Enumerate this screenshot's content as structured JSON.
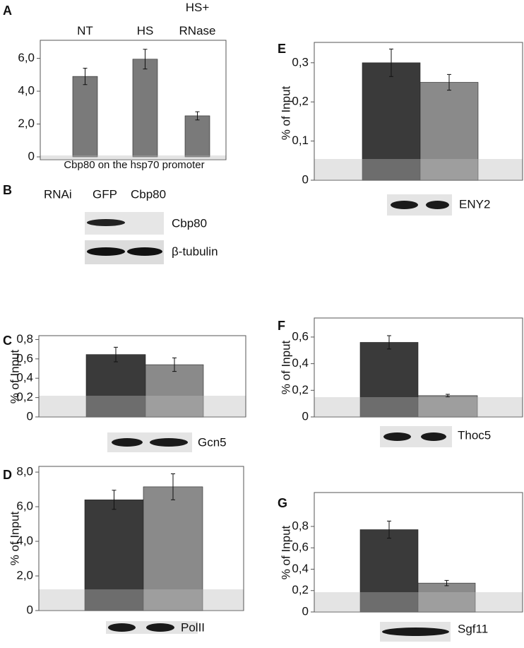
{
  "chart_data": [
    {
      "type": "bar",
      "panel": "A",
      "categories": [
        "NT",
        "HS",
        "HS+ RNase"
      ],
      "values": [
        4.9,
        5.95,
        2.5
      ],
      "errors": [
        0.5,
        0.6,
        0.25
      ],
      "colors": [
        "#7a7a7a",
        "#7a7a7a",
        "#7a7a7a"
      ],
      "xlabel": "Cbp80 on the hsp70 promoter",
      "ylim": [
        0,
        7.1
      ],
      "yticks": [
        0,
        {
          "value": 2,
          "label": "2,0"
        },
        {
          "value": 4,
          "label": "4,0"
        },
        {
          "value": 6,
          "label": "6,0"
        }
      ]
    },
    {
      "type": "bar",
      "panel": "C",
      "ylabel": "% of Input",
      "categories": [
        null,
        null
      ],
      "values": [
        0.645,
        0.54
      ],
      "errors": [
        0.075,
        0.07
      ],
      "colors": [
        "#3a3a3a",
        "#8a8a8a"
      ],
      "blot_label": "Gcn5",
      "ylim": [
        0,
        0.84
      ],
      "yticks": [
        0,
        {
          "value": 0.2,
          "label": "0,2"
        },
        {
          "value": 0.4,
          "label": "0,4"
        },
        {
          "value": 0.6,
          "label": "0,6"
        },
        {
          "value": 0.8,
          "label": "0,8"
        }
      ]
    },
    {
      "type": "bar",
      "panel": "D",
      "ylabel": "% of Input",
      "categories": [
        null,
        null
      ],
      "values": [
        6.4,
        7.15
      ],
      "errors": [
        0.55,
        0.75
      ],
      "colors": [
        "#3a3a3a",
        "#8a8a8a"
      ],
      "blot_label": "PolII",
      "ylim": [
        0,
        8.33
      ],
      "yticks": [
        0,
        {
          "value": 2,
          "label": "2,0"
        },
        {
          "value": 4,
          "label": "4,0"
        },
        {
          "value": 6,
          "label": "6,0"
        },
        {
          "value": 8,
          "label": "8,0"
        }
      ]
    },
    {
      "type": "bar",
      "panel": "E",
      "ylabel": "% of Input",
      "categories": [
        null,
        null
      ],
      "values": [
        0.3,
        0.25
      ],
      "errors": [
        0.035,
        0.02
      ],
      "colors": [
        "#3a3a3a",
        "#8a8a8a"
      ],
      "blot_label": "ENY2",
      "ylim": [
        0,
        0.352
      ],
      "yticks": [
        0,
        {
          "value": 0.1,
          "label": "0,1"
        },
        {
          "value": 0.2,
          "label": "0,2"
        },
        {
          "value": 0.3,
          "label": "0,3"
        }
      ]
    },
    {
      "type": "bar",
      "panel": "F",
      "ylabel": "% of Input",
      "categories": [
        null,
        null
      ],
      "values": [
        0.56,
        0.16
      ],
      "errors": [
        0.05,
        0.01
      ],
      "colors": [
        "#3a3a3a",
        "#8a8a8a"
      ],
      "blot_label": "Thoc5",
      "ylim": [
        0,
        0.743
      ],
      "yticks": [
        0,
        {
          "value": 0.2,
          "label": "0,2"
        },
        {
          "value": 0.4,
          "label": "0,4"
        },
        {
          "value": 0.6,
          "label": "0,6"
        }
      ]
    },
    {
      "type": "bar",
      "panel": "G",
      "ylabel": "% of Input",
      "categories": [
        null,
        null
      ],
      "values": [
        0.77,
        0.27
      ],
      "errors": [
        0.08,
        0.025
      ],
      "colors": [
        "#3a3a3a",
        "#8a8a8a"
      ],
      "blot_label": "Sgf11",
      "ylim": [
        0,
        1.117
      ],
      "yticks": [
        0,
        {
          "value": 0.2,
          "label": "0,2"
        },
        {
          "value": 0.4,
          "label": "0,4"
        },
        {
          "value": 0.6,
          "label": "0,6"
        },
        {
          "value": 0.8,
          "label": "0,8"
        }
      ]
    }
  ],
  "blot_b": {
    "panel": "B",
    "header": [
      "RNAi",
      "GFP",
      "Cbp80"
    ],
    "rows": [
      "Cbp80",
      "β-tubulin"
    ]
  }
}
